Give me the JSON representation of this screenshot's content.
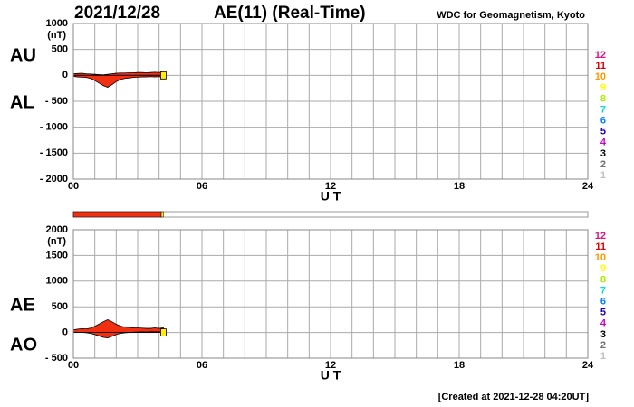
{
  "header": {
    "date": "2021/12/28",
    "title": "AE(11) (Real-Time)",
    "source": "WDC for Geomagnetism, Kyoto"
  },
  "footer": "[Created at 2021-12-28 04:20UT]",
  "coverage_bar": [
    {
      "start": 0,
      "end": 4.1,
      "color": "#f03010"
    },
    {
      "start": 4.1,
      "end": 4.2,
      "color": "#ffee00"
    }
  ],
  "chart_data": [
    {
      "type": "area",
      "unit": "(nT)",
      "xlabel": "U T",
      "x": [
        0,
        0.2,
        0.4,
        0.6,
        0.8,
        1,
        1.2,
        1.4,
        1.6,
        1.8,
        2,
        2.2,
        2.4,
        2.6,
        2.8,
        3,
        3.2,
        3.4,
        3.6,
        3.8,
        4,
        4.2
      ],
      "series": [
        {
          "name": "AU",
          "color": "#f03010",
          "values": [
            30,
            35,
            40,
            30,
            25,
            20,
            15,
            10,
            20,
            30,
            40,
            45,
            45,
            50,
            50,
            55,
            55,
            50,
            55,
            60,
            55,
            60
          ]
        },
        {
          "name": "AL",
          "color": "#f03010",
          "values": [
            -20,
            -30,
            -35,
            -40,
            -60,
            -100,
            -150,
            -200,
            -230,
            -180,
            -120,
            -80,
            -60,
            -50,
            -40,
            -35,
            -30,
            -30,
            -25,
            -30,
            -25,
            -30
          ]
        }
      ],
      "xlim": [
        0,
        24
      ],
      "xticks": [
        {
          "value": 0,
          "label": "00"
        },
        {
          "value": 6,
          "label": "06"
        },
        12,
        18,
        24
      ],
      "xgrid": [
        0,
        1,
        2,
        3,
        4,
        5,
        6,
        7,
        8,
        9,
        10,
        11,
        12,
        13,
        14,
        15,
        16,
        17,
        18,
        19,
        20,
        21,
        22,
        23,
        24
      ],
      "ylim": [
        -2000,
        1000
      ],
      "yticks": [
        1000,
        500,
        0,
        {
          "value": -500,
          "label": "- 500"
        },
        {
          "value": -1000,
          "label": "- 1000"
        },
        {
          "value": -1500,
          "label": "- 1500"
        },
        {
          "value": -2000,
          "label": "- 2000"
        }
      ],
      "grid": true
    },
    {
      "type": "area",
      "unit": "(nT)",
      "xlabel": "U T",
      "x": [
        0,
        0.2,
        0.4,
        0.6,
        0.8,
        1,
        1.2,
        1.4,
        1.6,
        1.8,
        2,
        2.2,
        2.4,
        2.6,
        2.8,
        3,
        3.2,
        3.4,
        3.6,
        3.8,
        4,
        4.2
      ],
      "series": [
        {
          "name": "AE",
          "color": "#f03010",
          "values": [
            50,
            65,
            75,
            70,
            85,
            120,
            165,
            210,
            250,
            210,
            160,
            125,
            105,
            100,
            90,
            90,
            85,
            80,
            80,
            90,
            80,
            90
          ]
        },
        {
          "name": "AO",
          "color": "#f03010",
          "values": [
            5,
            2.5,
            2.5,
            -5,
            -17.5,
            -40,
            -67.5,
            -95,
            -105,
            -75,
            -40,
            -17.5,
            -7.5,
            0,
            5,
            10,
            12.5,
            10,
            15,
            15,
            15,
            15
          ]
        }
      ],
      "xlim": [
        0,
        24
      ],
      "xticks": [
        {
          "value": 0,
          "label": "00"
        },
        {
          "value": 6,
          "label": "06"
        },
        12,
        18,
        24
      ],
      "xgrid": [
        0,
        1,
        2,
        3,
        4,
        5,
        6,
        7,
        8,
        9,
        10,
        11,
        12,
        13,
        14,
        15,
        16,
        17,
        18,
        19,
        20,
        21,
        22,
        23,
        24
      ],
      "ylim": [
        -500,
        2000
      ],
      "yticks": [
        2000,
        1500,
        1000,
        500,
        0,
        {
          "value": -500,
          "label": "- 500"
        }
      ],
      "grid": true
    }
  ],
  "scale_labels": [
    {
      "label": "12",
      "color": "#e0107f"
    },
    {
      "label": "11",
      "color": "#e00000"
    },
    {
      "label": "10",
      "color": "#ff9900"
    },
    {
      "label": "9",
      "color": "#ffff00"
    },
    {
      "label": "8",
      "color": "#aaee00"
    },
    {
      "label": "7",
      "color": "#00dddd"
    },
    {
      "label": "6",
      "color": "#0080ff"
    },
    {
      "label": "5",
      "color": "#2000c0"
    },
    {
      "label": "4",
      "color": "#cc00cc"
    },
    {
      "label": "3",
      "color": "#000000"
    },
    {
      "label": "2",
      "color": "#707070"
    },
    {
      "label": "1",
      "color": "#c0c0c0"
    }
  ]
}
